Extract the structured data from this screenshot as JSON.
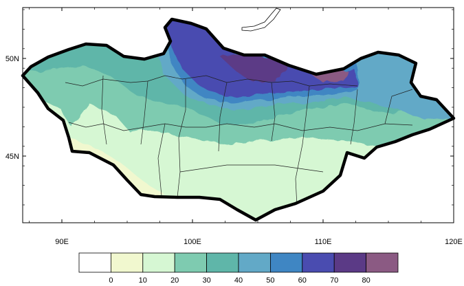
{
  "map": {
    "region": "Mongolia",
    "lon_range": [
      87,
      120
    ],
    "lat_range": [
      41.5,
      52.5
    ],
    "x_ticks": [
      {
        "value": 90,
        "label": "90E"
      },
      {
        "value": 100,
        "label": "100E"
      },
      {
        "value": 110,
        "label": "110E"
      },
      {
        "value": 120,
        "label": "120E"
      }
    ],
    "y_ticks": [
      {
        "value": 50,
        "label": "50N"
      },
      {
        "value": 45,
        "label": "45N"
      }
    ],
    "grid": false
  },
  "colorbar": {
    "orientation": "horizontal",
    "placement": "bottom",
    "levels": [
      "0",
      "10",
      "20",
      "30",
      "40",
      "50",
      "60",
      "70",
      "80"
    ],
    "colors": [
      "#ffffff",
      "#f1f8cf",
      "#d6f7d3",
      "#7ecbb0",
      "#5fb6a9",
      "#62a9c7",
      "#3f86c3",
      "#4a4cb0",
      "#5b3a86",
      "#8b5a83"
    ]
  }
}
